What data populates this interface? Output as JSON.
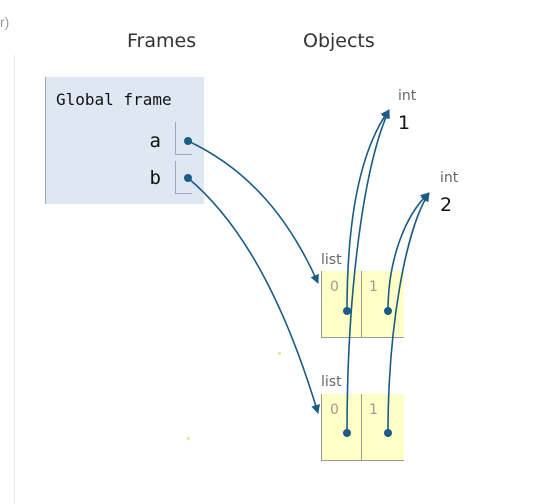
{
  "corner_text": "r)",
  "headings": {
    "frames": "Frames",
    "objects": "Objects"
  },
  "frame": {
    "title": "Global frame",
    "variables": [
      {
        "name": "a"
      },
      {
        "name": "b"
      }
    ]
  },
  "objects": {
    "int1": {
      "type": "int",
      "value": "1"
    },
    "int2": {
      "type": "int",
      "value": "2"
    },
    "list1": {
      "type": "list",
      "indices": [
        "0",
        "1"
      ]
    },
    "list2": {
      "type": "list",
      "indices": [
        "0",
        "1"
      ]
    }
  },
  "colors": {
    "arrow": "#1a5c86",
    "frame_bg": "#dfe7f3",
    "list_bg": "#ffffc6"
  }
}
